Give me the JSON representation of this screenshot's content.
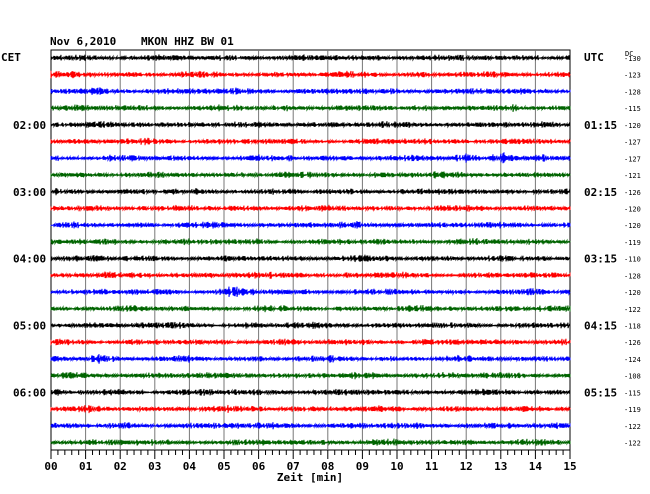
{
  "header": {
    "date": "Nov 6,2010",
    "station": "MKON HHZ BW 01",
    "left_tz": "CET",
    "right_tz": "UTC",
    "dc_label": "DC"
  },
  "chart_data": {
    "type": "line",
    "title": "Nov 6,2010   MKON HHZ BW 01",
    "xlabel": "Zeit [min]",
    "x_ticks": [
      "00",
      "01",
      "02",
      "03",
      "04",
      "05",
      "06",
      "07",
      "08",
      "09",
      "10",
      "11",
      "12",
      "13",
      "14",
      "15"
    ],
    "xlim": [
      0,
      15
    ],
    "grid": true,
    "trace_colors": [
      "#000000",
      "#ff0000",
      "#0000ff",
      "#006400"
    ],
    "left_hour_labels": [
      {
        "trace": 4,
        "label": "02:00"
      },
      {
        "trace": 8,
        "label": "03:00"
      },
      {
        "trace": 12,
        "label": "04:00"
      },
      {
        "trace": 16,
        "label": "05:00"
      },
      {
        "trace": 20,
        "label": "06:00"
      }
    ],
    "right_hour_labels": [
      {
        "trace": 4,
        "label": "01:15"
      },
      {
        "trace": 8,
        "label": "02:15"
      },
      {
        "trace": 12,
        "label": "03:15"
      },
      {
        "trace": 16,
        "label": "04:15"
      },
      {
        "trace": 20,
        "label": "05:15"
      }
    ],
    "dc_offsets": [
      "-130",
      "-123",
      "-128",
      "-115",
      "-120",
      "-127",
      "-127",
      "-121",
      "-126",
      "-120",
      "-120",
      "-119",
      "-110",
      "-128",
      "-120",
      "-122",
      "-118",
      "-126",
      "-124",
      "-108",
      "-115",
      "-119",
      "-122",
      "-122"
    ],
    "burst_events": [
      {
        "trace": 6,
        "minute": 12.0,
        "amplitude": 1.6
      },
      {
        "trace": 6,
        "minute": 13.1,
        "amplitude": 1.9
      },
      {
        "trace": 13,
        "minute": 7.0,
        "amplitude": 1.5
      },
      {
        "trace": 14,
        "minute": 5.2,
        "amplitude": 1.4
      },
      {
        "trace": 18,
        "minute": 1.4,
        "amplitude": 1.5
      }
    ]
  }
}
